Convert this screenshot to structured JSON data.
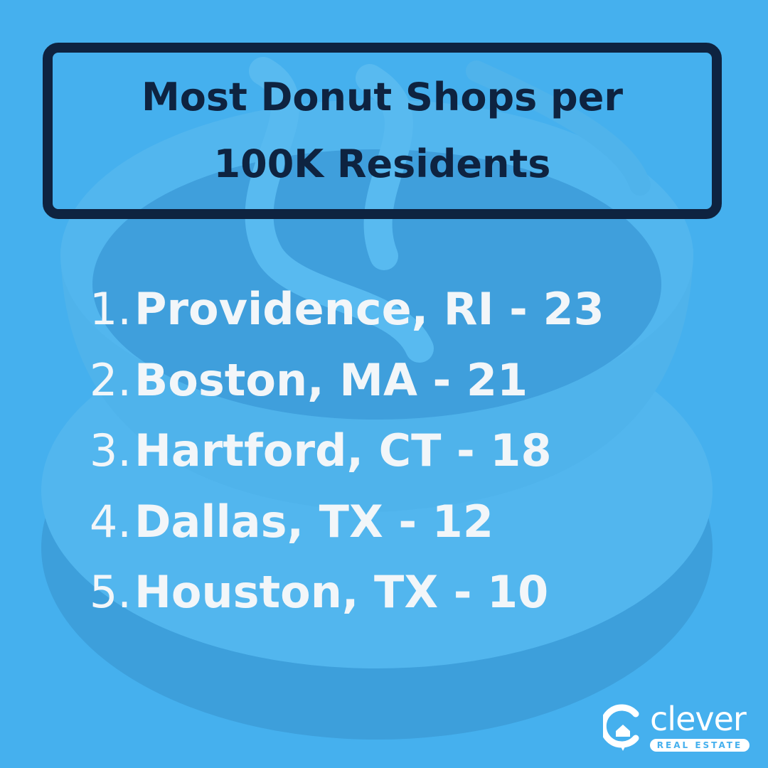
{
  "header": {
    "title_lines": [
      "Most Donut Shops per",
      "100K Residents"
    ]
  },
  "list": {
    "items": [
      {
        "rank": "1.",
        "text": "Providence, RI - 23"
      },
      {
        "rank": "2.",
        "text": "Boston, MA - 21"
      },
      {
        "rank": "3.",
        "text": "Hartford, CT - 18"
      },
      {
        "rank": "4.",
        "text": "Dallas, TX - 12"
      },
      {
        "rank": "5.",
        "text": "Houston, TX - 10"
      }
    ]
  },
  "logo": {
    "name": "clever",
    "tagline": "REAL ESTATE"
  }
}
